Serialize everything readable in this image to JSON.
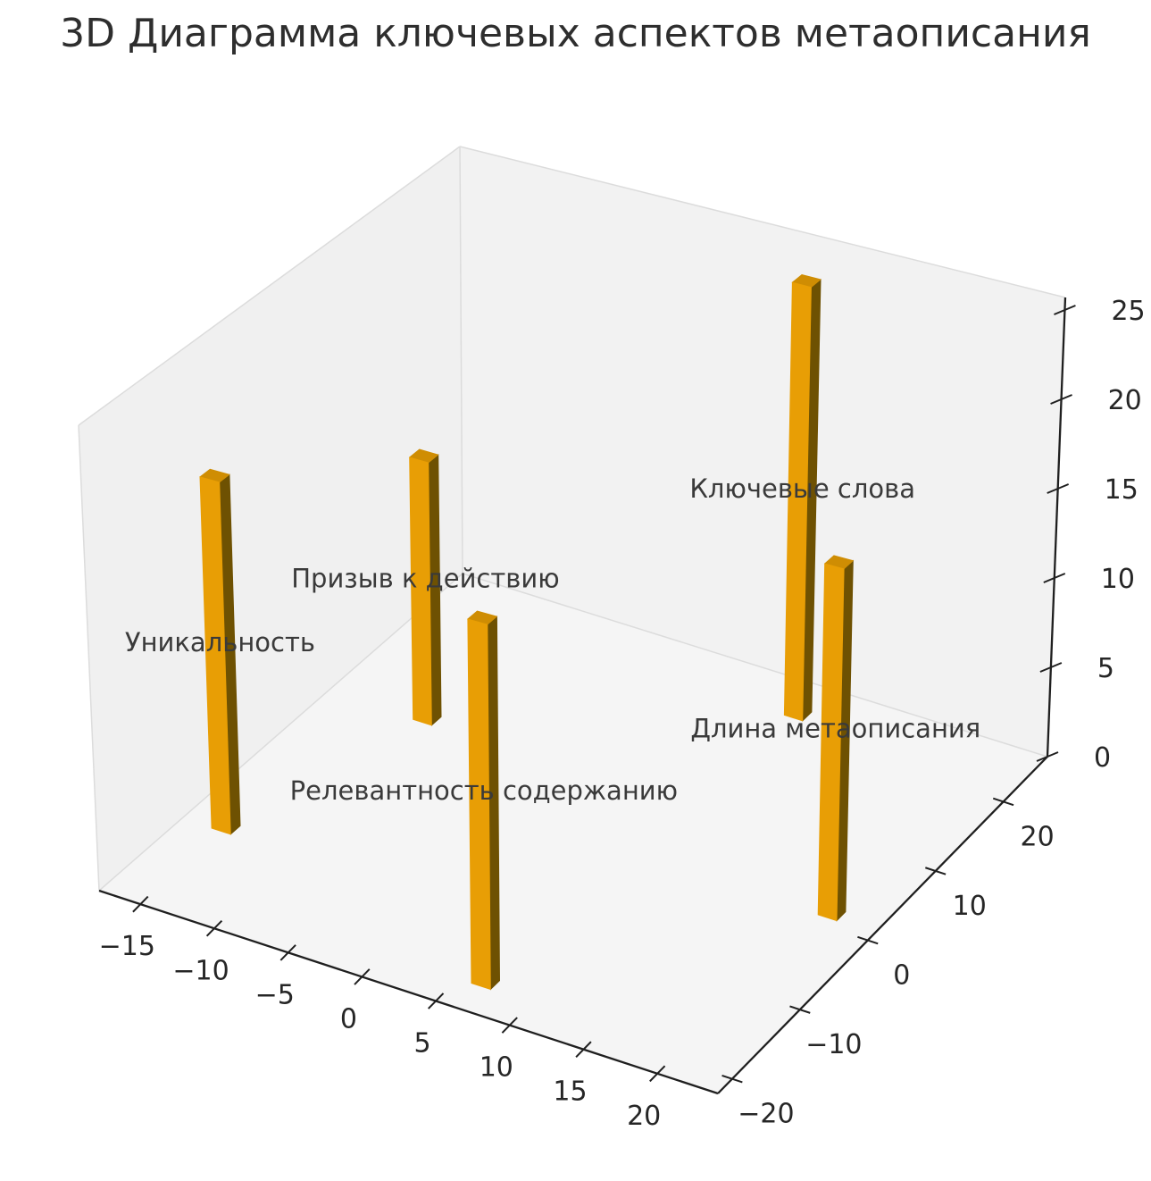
{
  "title": "3D Диаграмма ключевых аспектов метаописания",
  "chart_data": {
    "type": "bar",
    "projection": "3d",
    "title": "3D Диаграмма ключевых аспектов метаописания",
    "bars": [
      {
        "label": "Уникальность",
        "x": -15.1,
        "y": -10.4,
        "value": 19.7
      },
      {
        "label": "Призыв к действию",
        "x": -11.1,
        "y": 9.0,
        "value": 15.1
      },
      {
        "label": "Релевантность содержанию",
        "x": 6.5,
        "y": -18.2,
        "value": 19.4
      },
      {
        "label": "Ключевые слова",
        "x": 8.2,
        "y": 22.6,
        "value": 24.7
      },
      {
        "label": "Длина метаописания",
        "x": 20.8,
        "y": 1.7,
        "value": 18.9
      }
    ],
    "bar_footprint": {
      "dx": 1.3,
      "dy": 1.3
    },
    "xlim": [
      -17.8,
      24.1
    ],
    "ylim": [
      -22.1,
      26.5
    ],
    "zlim": [
      0,
      25.7
    ],
    "xticks": [
      -15,
      -10,
      -5,
      0,
      5,
      10,
      15,
      20
    ],
    "yticks": [
      -20,
      -10,
      0,
      10,
      20
    ],
    "zticks": [
      0,
      5,
      10,
      15,
      20,
      25
    ],
    "grid": false,
    "legend": false
  },
  "colors": {
    "bar_front": "#e89e05",
    "bar_side": "#6e5102",
    "bar_top": "#cf8d03",
    "pane_left": "#f0f0f0",
    "pane_right": "#f2f2f2",
    "pane_floor": "#f5f5f5",
    "seam_line": "#dcdcdc",
    "axis_line": "#1f1f1f",
    "tick_text": "#262626",
    "label_text": "#3a3a3a",
    "title_text": "#2e2e2e"
  }
}
